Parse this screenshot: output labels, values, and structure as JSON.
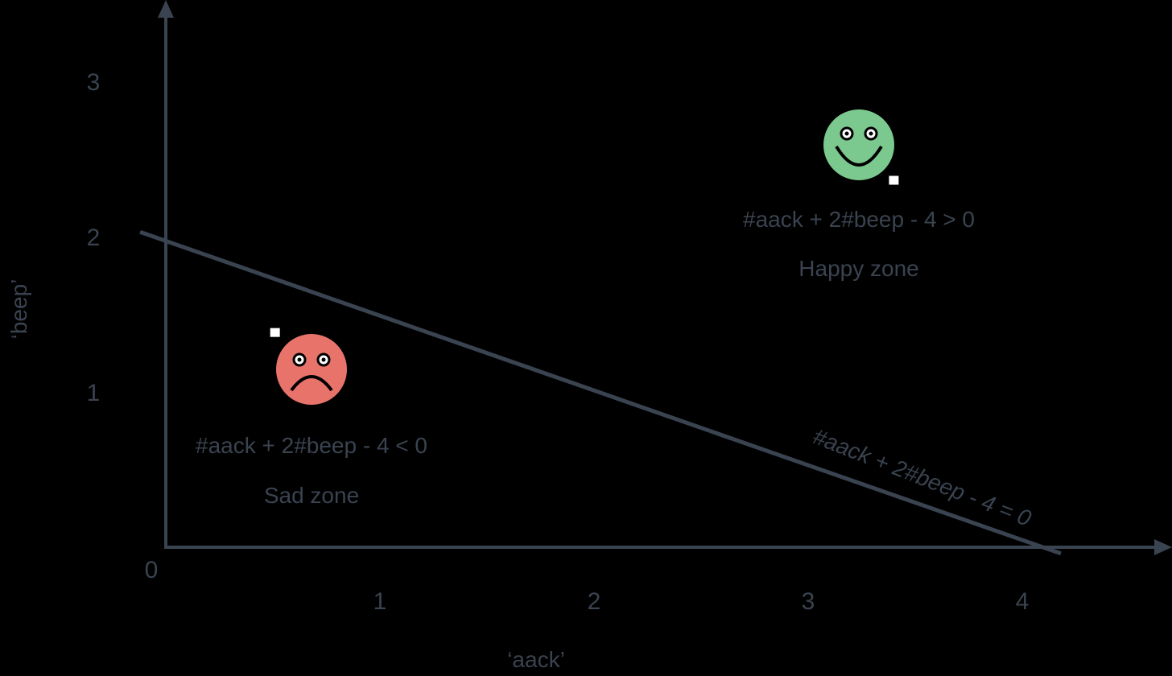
{
  "chart_data": {
    "type": "scatter",
    "xlabel": "‘aack’",
    "ylabel": "‘beep’",
    "origin_label": "0",
    "x_ticks": [
      "1",
      "2",
      "3",
      "4"
    ],
    "y_ticks": [
      "1",
      "2",
      "3"
    ],
    "xlim": [
      0,
      4.7
    ],
    "ylim": [
      0,
      3.5
    ],
    "boundary": {
      "equation": "#aack + 2#beep - 4 = 0",
      "from": [
        -0.12,
        2.03
      ],
      "to": [
        4.18,
        -0.04
      ]
    },
    "points": [
      {
        "x": 3.4,
        "y": 2.36,
        "marker": "square",
        "color": "#ffffff"
      },
      {
        "x": 0.51,
        "y": 1.38,
        "marker": "square",
        "color": "#ffffff"
      }
    ],
    "annotations": {
      "happy": {
        "icon": "happy-face-icon",
        "color": "#7bc98f",
        "condition": "#aack + 2#beep - 4 > 0",
        "label": "Happy zone"
      },
      "sad": {
        "icon": "sad-face-icon",
        "color": "#e8736a",
        "condition": "#aack + 2#beep - 4 < 0",
        "label": "Sad zone"
      }
    },
    "colors": {
      "axis": "#3a4350",
      "background": "#000000"
    },
    "grid": false,
    "legend": "none"
  }
}
